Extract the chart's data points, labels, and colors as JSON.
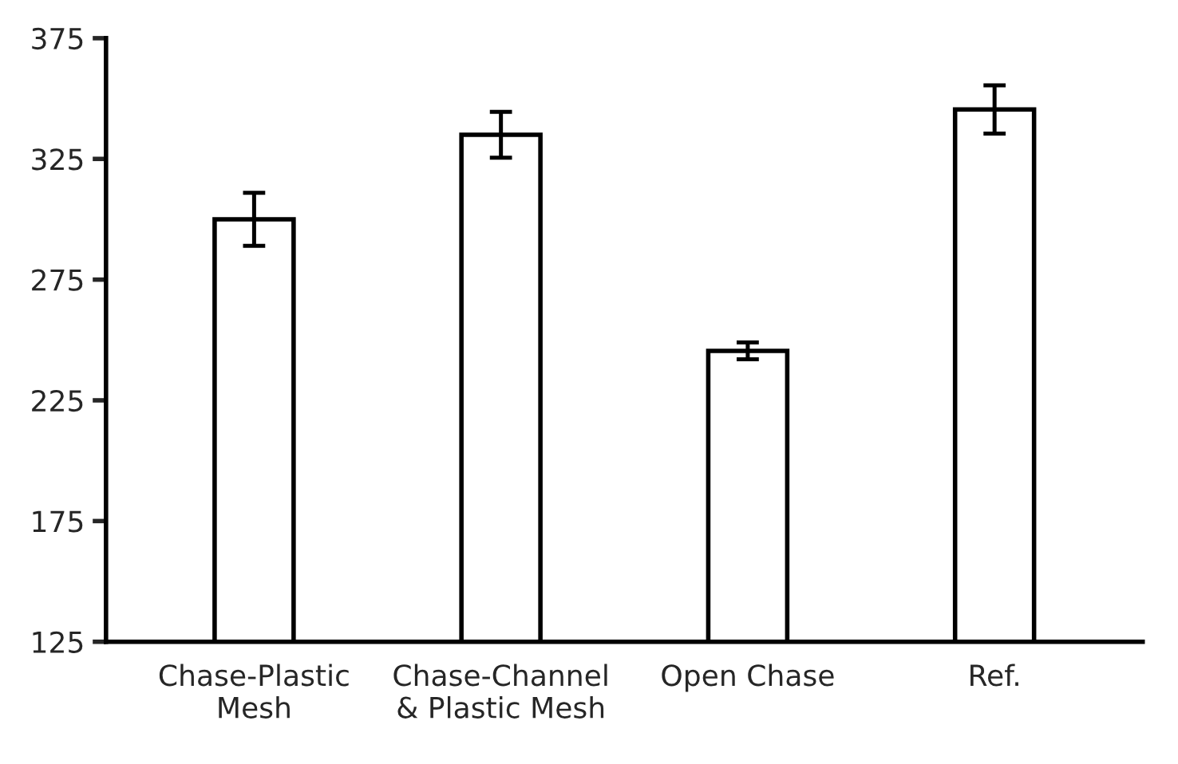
{
  "chart_data": {
    "type": "bar",
    "categories": [
      "Chase-Plastic\nMesh",
      "Chase-Channel\n& Plastic Mesh",
      "Open Chase",
      "Ref."
    ],
    "values": [
      300,
      335,
      245.5,
      345.5
    ],
    "errors": [
      11,
      9.5,
      3.5,
      10
    ],
    "color": "#ffffff",
    "ylim": [
      125,
      375
    ],
    "yticks": [
      125,
      175,
      225,
      275,
      325,
      375
    ],
    "grid": false,
    "legend": false
  }
}
